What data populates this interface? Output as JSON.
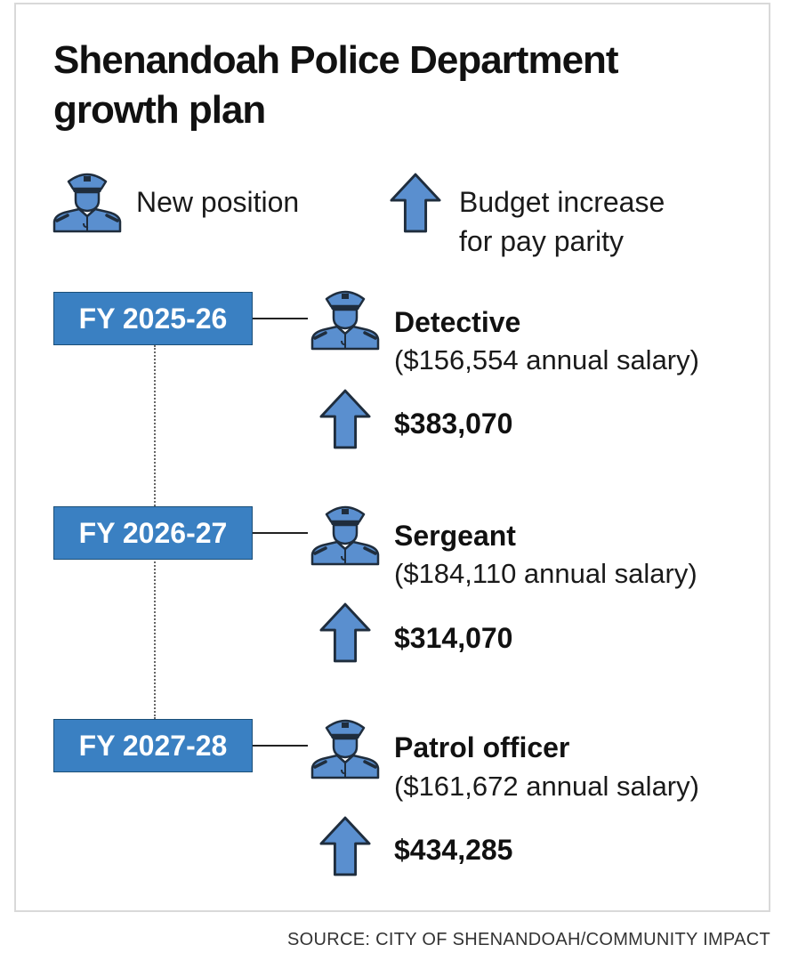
{
  "title": "Shenandoah Police Department growth plan",
  "legend": {
    "new_position": "New position",
    "budget_increase_line1": "Budget increase",
    "budget_increase_line2": "for pay parity",
    "officer_icon": "police-officer-icon",
    "arrow_icon": "up-arrow-icon"
  },
  "entries": [
    {
      "year": "FY 2025-26",
      "position": "Detective",
      "salary": "($156,554 annual salary)",
      "increase": "$383,070"
    },
    {
      "year": "FY 2026-27",
      "position": "Sergeant",
      "salary": "($184,110 annual salary)",
      "increase": "$314,070"
    },
    {
      "year": "FY 2027-28",
      "position": "Patrol officer",
      "salary": "($161,672 annual salary)",
      "increase": "$434,285"
    }
  ],
  "source": "SOURCE: CITY OF SHENANDOAH/COMMUNITY IMPACT",
  "colors": {
    "accent_blue": "#3a80c2",
    "box_border": "#1b4f78",
    "icon_blue": "#5a8fcf",
    "icon_outline": "#1f2d3d"
  }
}
